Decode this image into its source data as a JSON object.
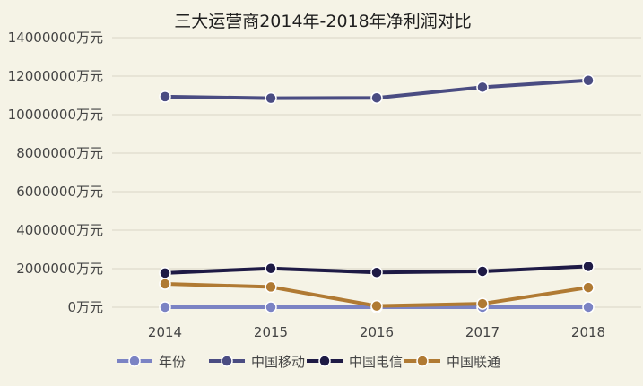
{
  "chart_data": {
    "type": "line",
    "title": "三大运营商2014年-2018年净利润对比",
    "xlabel": "",
    "ylabel": "",
    "categories": [
      "2014",
      "2015",
      "2016",
      "2017",
      "2018"
    ],
    "ylim": [
      0,
      14000000
    ],
    "yticks": [
      0,
      2000000,
      4000000,
      6000000,
      8000000,
      10000000,
      12000000,
      14000000
    ],
    "ytick_labels": [
      "0万元",
      "2000000万元",
      "4000000万元",
      "6000000万元",
      "8000000万元",
      "10000000万元",
      "12000000万元",
      "14000000万元"
    ],
    "grid": true,
    "legend_position": "bottom",
    "series": [
      {
        "name": "年份",
        "color": "#7b83c4",
        "values": [
          2014,
          2015,
          2016,
          2017,
          2018
        ]
      },
      {
        "name": "中国移动",
        "color": "#4a4c82",
        "values": [
          10935000,
          10854000,
          10874000,
          11427000,
          11779000
        ]
      },
      {
        "name": "中国电信",
        "color": "#1e1a45",
        "values": [
          1774000,
          2014000,
          1801000,
          1863000,
          2119000
        ]
      },
      {
        "name": "中国联通",
        "color": "#b07a33",
        "values": [
          1207000,
          1050000,
          63000,
          183000,
          1020000
        ]
      }
    ]
  }
}
